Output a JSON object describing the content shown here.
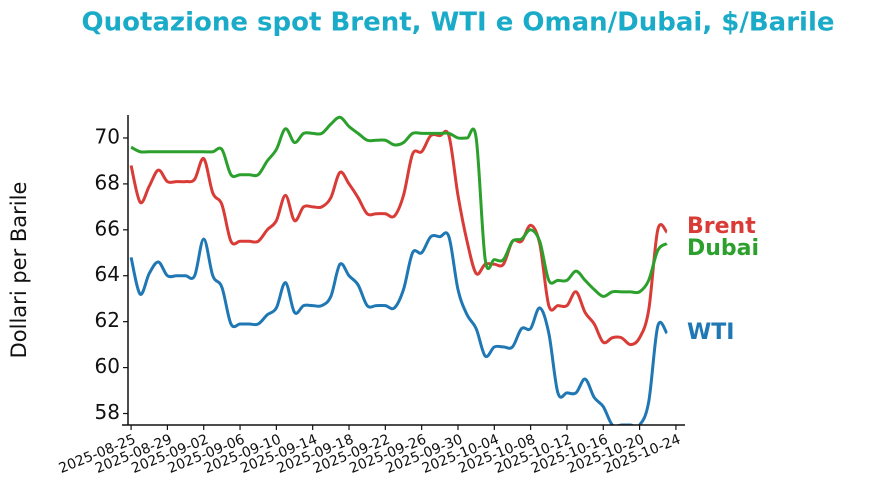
{
  "chart_data": {
    "type": "line",
    "title": "Quotazione spot Brent, WTI e Oman/Dubai, $/Barile",
    "y_label": "Dollari per Barile",
    "x": [
      "2025-08-25",
      "2025-08-26",
      "2025-08-27",
      "2025-08-28",
      "2025-08-29",
      "2025-08-30",
      "2025-08-31",
      "2025-09-01",
      "2025-09-02",
      "2025-09-03",
      "2025-09-04",
      "2025-09-05",
      "2025-09-06",
      "2025-09-07",
      "2025-09-08",
      "2025-09-09",
      "2025-09-10",
      "2025-09-11",
      "2025-09-12",
      "2025-09-13",
      "2025-09-14",
      "2025-09-15",
      "2025-09-16",
      "2025-09-17",
      "2025-09-18",
      "2025-09-19",
      "2025-09-20",
      "2025-09-21",
      "2025-09-22",
      "2025-09-23",
      "2025-09-24",
      "2025-09-25",
      "2025-09-26",
      "2025-09-27",
      "2025-09-28",
      "2025-09-29",
      "2025-09-30",
      "2025-10-01",
      "2025-10-02",
      "2025-10-03",
      "2025-10-04",
      "2025-10-05",
      "2025-10-06",
      "2025-10-07",
      "2025-10-08",
      "2025-10-09",
      "2025-10-10",
      "2025-10-11",
      "2025-10-12",
      "2025-10-13",
      "2025-10-14",
      "2025-10-15",
      "2025-10-16",
      "2025-10-17",
      "2025-10-18",
      "2025-10-19",
      "2025-10-20",
      "2025-10-21",
      "2025-10-22",
      "2025-10-23"
    ],
    "series": [
      {
        "name": "Brent",
        "color": "#d93b36",
        "values": [
          68.8,
          67.2,
          67.9,
          68.6,
          68.1,
          68.1,
          68.1,
          68.2,
          69.1,
          67.6,
          67.1,
          65.5,
          65.5,
          65.5,
          65.5,
          66.0,
          66.4,
          67.5,
          66.4,
          67.0,
          67.0,
          67.0,
          67.4,
          68.5,
          68.0,
          67.4,
          66.7,
          66.7,
          66.7,
          66.6,
          67.5,
          69.3,
          69.4,
          70.1,
          70.1,
          70.1,
          67.5,
          65.5,
          64.1,
          64.5,
          64.5,
          64.5,
          65.5,
          65.5,
          66.2,
          65.4,
          62.7,
          62.7,
          62.7,
          63.3,
          62.4,
          61.9,
          61.1,
          61.3,
          61.3,
          61.0,
          61.3,
          62.5,
          66.0,
          65.9
        ]
      },
      {
        "name": "Dubai",
        "color": "#2ca02c",
        "values": [
          69.6,
          69.4,
          69.4,
          69.4,
          69.4,
          69.4,
          69.4,
          69.4,
          69.4,
          69.4,
          69.5,
          68.4,
          68.4,
          68.4,
          68.4,
          69.0,
          69.5,
          70.4,
          69.8,
          70.2,
          70.2,
          70.2,
          70.6,
          70.9,
          70.5,
          70.2,
          69.9,
          69.9,
          69.9,
          69.7,
          69.8,
          70.2,
          70.2,
          70.2,
          70.2,
          70.2,
          70.0,
          70.0,
          70.0,
          64.7,
          64.7,
          64.7,
          65.5,
          65.6,
          66.0,
          65.5,
          63.8,
          63.8,
          63.8,
          64.2,
          63.8,
          63.4,
          63.1,
          63.3,
          63.3,
          63.3,
          63.3,
          63.8,
          65.1,
          65.4
        ]
      },
      {
        "name": "WTI",
        "color": "#1f77b4",
        "values": [
          64.8,
          63.2,
          64.1,
          64.6,
          64.0,
          64.0,
          64.0,
          64.0,
          65.6,
          64.0,
          63.5,
          61.9,
          61.9,
          61.9,
          61.9,
          62.3,
          62.6,
          63.7,
          62.4,
          62.7,
          62.7,
          62.7,
          63.1,
          64.5,
          64.0,
          63.6,
          62.7,
          62.7,
          62.7,
          62.6,
          63.4,
          65.0,
          65.0,
          65.7,
          65.7,
          65.7,
          63.4,
          62.3,
          61.7,
          60.5,
          60.9,
          60.9,
          60.9,
          61.7,
          61.7,
          62.6,
          61.5,
          58.9,
          58.9,
          58.9,
          59.5,
          58.7,
          58.3,
          57.5,
          57.5,
          57.5,
          57.5,
          58.5,
          61.8,
          61.5
        ]
      }
    ],
    "xlim": [
      "2025-08-24",
      "2025-10-25"
    ],
    "xticks": [
      "2025-08-25",
      "2025-08-29",
      "2025-09-02",
      "2025-09-06",
      "2025-09-10",
      "2025-09-14",
      "2025-09-18",
      "2025-09-22",
      "2025-09-26",
      "2025-09-30",
      "2025-10-04",
      "2025-10-08",
      "2025-10-12",
      "2025-10-16",
      "2025-10-20",
      "2025-10-24"
    ],
    "ylim": [
      57.5,
      71
    ],
    "yticks": [
      58,
      60,
      62,
      64,
      66,
      68,
      70
    ],
    "grid": false
  }
}
